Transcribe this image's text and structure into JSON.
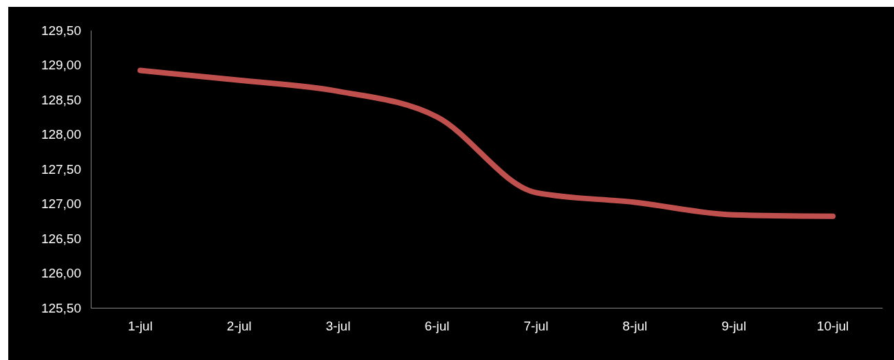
{
  "chart_data": {
    "type": "line",
    "categories": [
      "1-jul",
      "2-jul",
      "3-jul",
      "6-jul",
      "7-jul",
      "8-jul",
      "9-jul",
      "10-jul"
    ],
    "series": [
      {
        "color": "#c0504d",
        "values": [
          128.92,
          128.78,
          128.62,
          128.25,
          127.16,
          127.02,
          126.84,
          126.82
        ]
      }
    ],
    "ylim": [
      125.5,
      129.5
    ],
    "yticks": [
      {
        "value": 125.5,
        "label": "125,50"
      },
      {
        "value": 126,
        "label": "126,00"
      },
      {
        "value": 126.5,
        "label": "126,50"
      },
      {
        "value": 127,
        "label": "127,00"
      },
      {
        "value": 127.5,
        "label": "127,50"
      },
      {
        "value": 128,
        "label": "128,00"
      },
      {
        "value": 128.5,
        "label": "128,50"
      },
      {
        "value": 129,
        "label": "129,00"
      },
      {
        "value": 129.5,
        "label": "129,50"
      }
    ],
    "grid": false,
    "legend": false,
    "marker": "none",
    "line_style": "solid"
  }
}
